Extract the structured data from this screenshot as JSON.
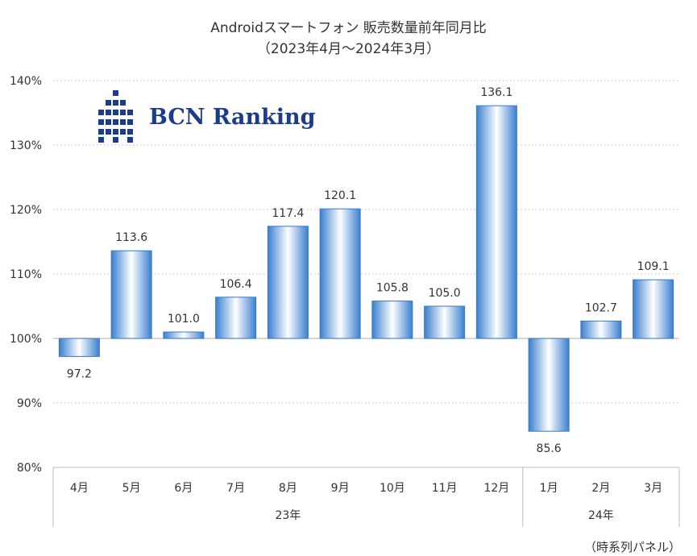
{
  "chart_data": {
    "type": "bar",
    "title": "Androidスマートフォン 販売数量前年同月比",
    "subtitle": "（2023年4月～2024年3月）",
    "categories": [
      "4月",
      "5月",
      "6月",
      "7月",
      "8月",
      "9月",
      "10月",
      "11月",
      "12月",
      "1月",
      "2月",
      "3月"
    ],
    "groups": [
      {
        "label": "23年",
        "count": 9
      },
      {
        "label": "24年",
        "count": 3
      }
    ],
    "series": [
      {
        "values": [
          97.2,
          113.6,
          101.0,
          106.4,
          117.4,
          120.1,
          105.8,
          105.0,
          136.1,
          85.6,
          102.7,
          109.1
        ]
      }
    ],
    "data_labels": [
      "97.2",
      "113.6",
      "101.0",
      "106.4",
      "117.4",
      "120.1",
      "105.8",
      "105.0",
      "136.1",
      "85.6",
      "102.7",
      "109.1"
    ],
    "baseline": 100,
    "ylim": [
      80,
      140
    ],
    "yticks": [
      80,
      90,
      100,
      110,
      120,
      130,
      140
    ],
    "ytick_labels": [
      "80%",
      "90%",
      "100%",
      "110%",
      "120%",
      "130%",
      "140%"
    ],
    "grid": true,
    "bar_color": "#4a90d9",
    "bar_edge_color": "#3a78c2"
  },
  "logo": {
    "text": "BCN Ranking",
    "color": "#1b3b8b"
  },
  "note": "（時系列パネル）"
}
